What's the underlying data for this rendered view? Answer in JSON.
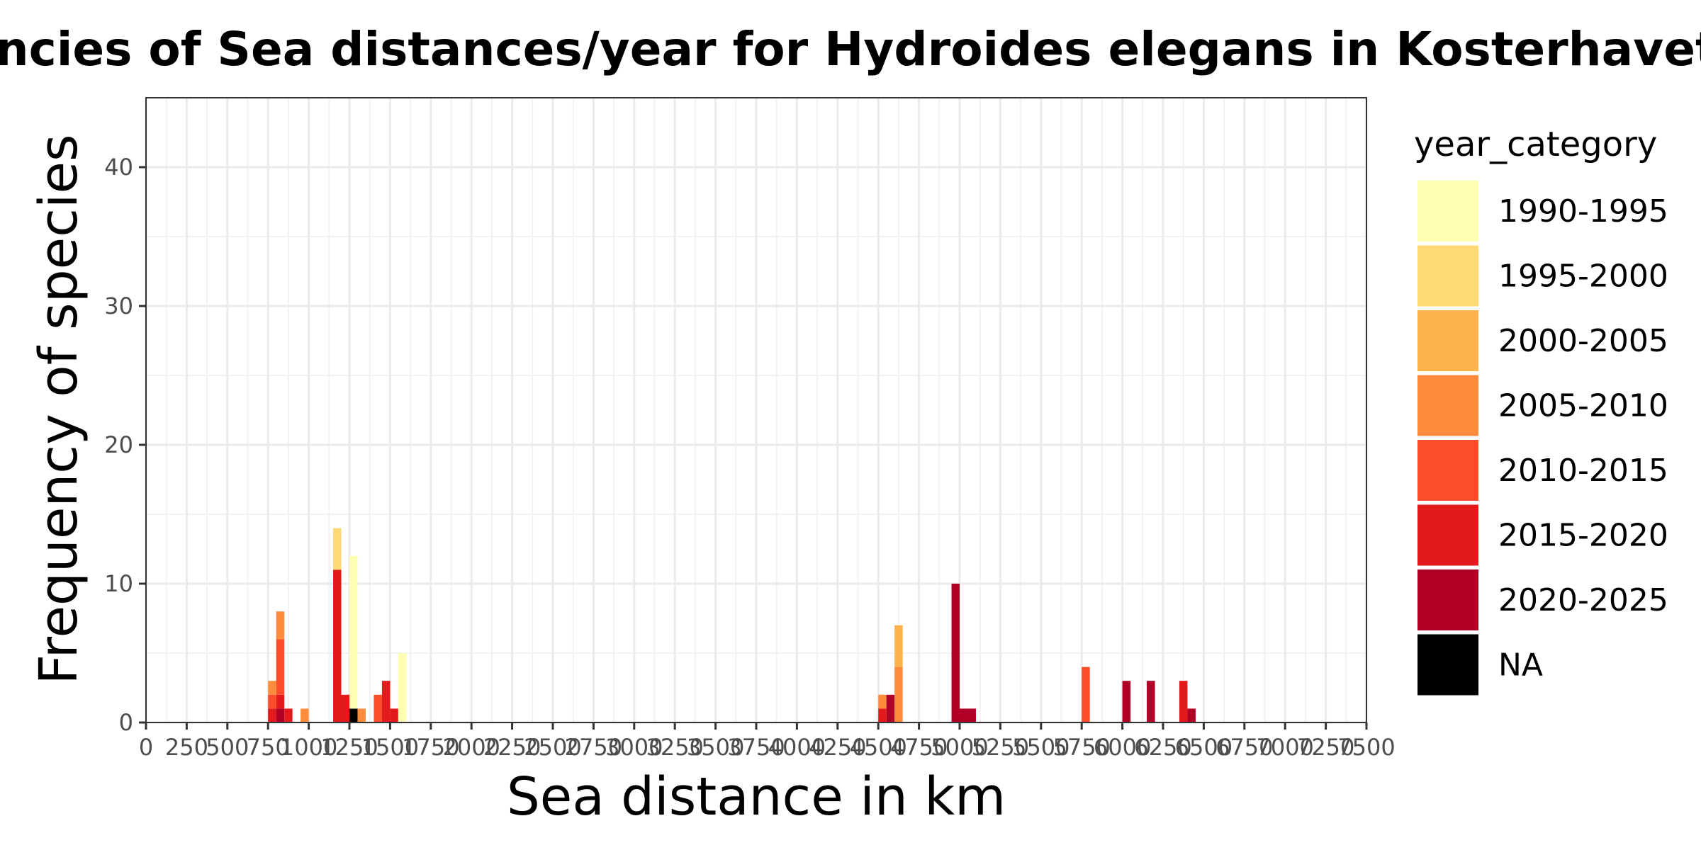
{
  "chart_data": {
    "type": "bar",
    "stacked": true,
    "title": "Frequencies of Sea distances/year for Hydroides elegans in Kosterhavet",
    "xlabel": "Sea distance in km",
    "ylabel": "Frequency of species",
    "xlim": [
      0,
      7500
    ],
    "ylim": [
      0,
      45
    ],
    "bin_width": 50,
    "x_ticks": [
      "0",
      "250",
      "500",
      "750",
      "1000",
      "1250",
      "1500",
      "1750",
      "2000",
      "2250",
      "2500",
      "2750",
      "3000",
      "3250",
      "3500",
      "3750",
      "4000",
      "4250",
      "4500",
      "4750",
      "5000",
      "5250",
      "5500",
      "5750",
      "6000",
      "6250",
      "6500",
      "6750",
      "7000",
      "7250",
      "7500"
    ],
    "y_ticks": [
      0,
      10,
      20,
      30,
      40
    ],
    "grid": true,
    "legend": {
      "title": "year_category",
      "position": "right",
      "entries": [
        {
          "name": "1990-1995",
          "color": "#FFFFB2"
        },
        {
          "name": "1995-2000",
          "color": "#FED976"
        },
        {
          "name": "2000-2005",
          "color": "#FEB24C"
        },
        {
          "name": "2005-2010",
          "color": "#FD8D3C"
        },
        {
          "name": "2010-2015",
          "color": "#FC4E2A"
        },
        {
          "name": "2015-2020",
          "color": "#E31A1C"
        },
        {
          "name": "2020-2025",
          "color": "#B10026"
        },
        {
          "name": "NA",
          "color": "#000000"
        }
      ]
    },
    "bins": [
      {
        "x0": 750,
        "x1": 800,
        "stack": [
          {
            "cat": "2015-2020",
            "count": 1
          },
          {
            "cat": "2010-2015",
            "count": 1
          },
          {
            "cat": "2005-2010",
            "count": 1
          }
        ]
      },
      {
        "x0": 800,
        "x1": 850,
        "stack": [
          {
            "cat": "2020-2025",
            "count": 1
          },
          {
            "cat": "2015-2020",
            "count": 1
          },
          {
            "cat": "2010-2015",
            "count": 4
          },
          {
            "cat": "2005-2010",
            "count": 2
          }
        ]
      },
      {
        "x0": 850,
        "x1": 900,
        "stack": [
          {
            "cat": "2015-2020",
            "count": 1
          }
        ]
      },
      {
        "x0": 950,
        "x1": 1000,
        "stack": [
          {
            "cat": "2005-2010",
            "count": 1
          }
        ]
      },
      {
        "x0": 1150,
        "x1": 1200,
        "stack": [
          {
            "cat": "2015-2020",
            "count": 11
          },
          {
            "cat": "1995-2000",
            "count": 3
          }
        ]
      },
      {
        "x0": 1200,
        "x1": 1250,
        "stack": [
          {
            "cat": "2015-2020",
            "count": 2
          }
        ]
      },
      {
        "x0": 1250,
        "x1": 1300,
        "stack": [
          {
            "cat": "NA",
            "count": 1
          },
          {
            "cat": "1990-1995",
            "count": 11
          }
        ]
      },
      {
        "x0": 1300,
        "x1": 1350,
        "stack": [
          {
            "cat": "2005-2010",
            "count": 1
          }
        ]
      },
      {
        "x0": 1400,
        "x1": 1450,
        "stack": [
          {
            "cat": "2010-2015",
            "count": 2
          }
        ]
      },
      {
        "x0": 1450,
        "x1": 1500,
        "stack": [
          {
            "cat": "2015-2020",
            "count": 3
          }
        ]
      },
      {
        "x0": 1500,
        "x1": 1550,
        "stack": [
          {
            "cat": "2015-2020",
            "count": 1
          }
        ]
      },
      {
        "x0": 1550,
        "x1": 1600,
        "stack": [
          {
            "cat": "1990-1995",
            "count": 5
          }
        ]
      },
      {
        "x0": 4500,
        "x1": 4550,
        "stack": [
          {
            "cat": "2015-2020",
            "count": 1
          },
          {
            "cat": "2005-2010",
            "count": 1
          }
        ]
      },
      {
        "x0": 4550,
        "x1": 4600,
        "stack": [
          {
            "cat": "2020-2025",
            "count": 2
          }
        ]
      },
      {
        "x0": 4600,
        "x1": 4650,
        "stack": [
          {
            "cat": "2005-2010",
            "count": 4
          },
          {
            "cat": "2000-2005",
            "count": 3
          }
        ]
      },
      {
        "x0": 4950,
        "x1": 5000,
        "stack": [
          {
            "cat": "2020-2025",
            "count": 10
          }
        ]
      },
      {
        "x0": 5000,
        "x1": 5050,
        "stack": [
          {
            "cat": "2020-2025",
            "count": 1
          }
        ]
      },
      {
        "x0": 5050,
        "x1": 5100,
        "stack": [
          {
            "cat": "2020-2025",
            "count": 1
          }
        ]
      },
      {
        "x0": 5750,
        "x1": 5800,
        "stack": [
          {
            "cat": "2010-2015",
            "count": 4
          }
        ]
      },
      {
        "x0": 6000,
        "x1": 6050,
        "stack": [
          {
            "cat": "2020-2025",
            "count": 3
          }
        ]
      },
      {
        "x0": 6150,
        "x1": 6200,
        "stack": [
          {
            "cat": "2020-2025",
            "count": 3
          }
        ]
      },
      {
        "x0": 6350,
        "x1": 6400,
        "stack": [
          {
            "cat": "2015-2020",
            "count": 3
          }
        ]
      },
      {
        "x0": 6400,
        "x1": 6450,
        "stack": [
          {
            "cat": "2020-2025",
            "count": 1
          }
        ]
      }
    ]
  }
}
